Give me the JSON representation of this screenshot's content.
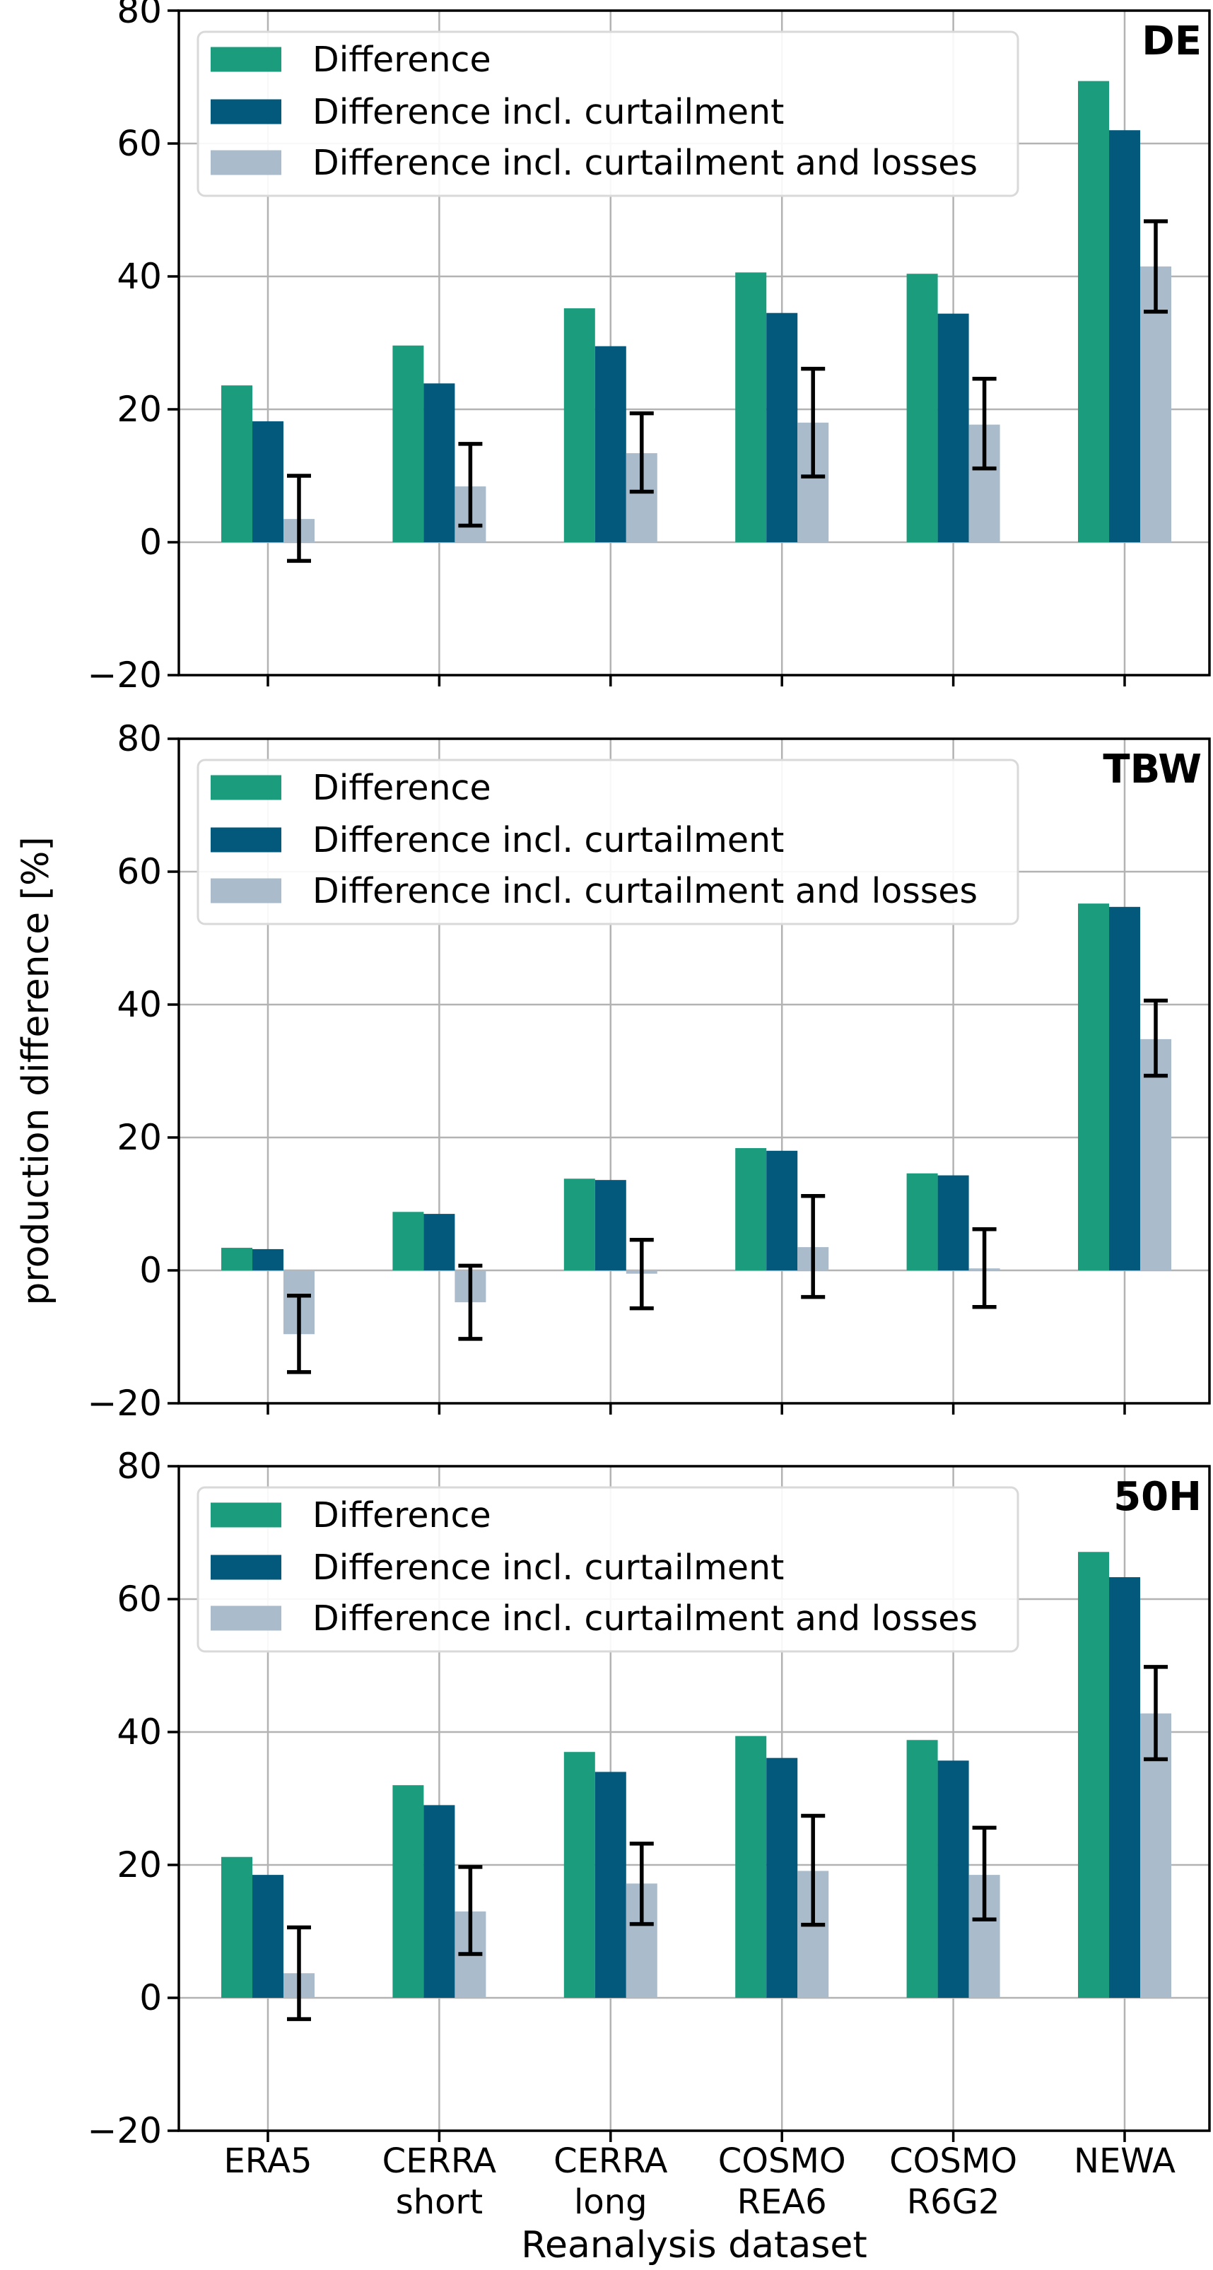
{
  "figure": {
    "ylabel": "production difference [%]",
    "xlabel": "Reanalysis dataset",
    "y_tick_labels": [
      "80",
      "60",
      "40",
      "20",
      "0",
      "−20"
    ],
    "colors": {
      "difference": "#1a9c7d",
      "difference_curtailment": "#03597c",
      "difference_curtailment_losses": "#aabccb",
      "grid": "#b3b3b3",
      "spine": "#000000",
      "error_bar": "#000000",
      "legend_border": "#d9d9d9",
      "background": "#ffffff"
    }
  },
  "legend": {
    "entries": [
      {
        "label": "Difference",
        "color_key": "difference"
      },
      {
        "label": "Difference incl. curtailment",
        "color_key": "difference_curtailment"
      },
      {
        "label": "Difference incl. curtailment and losses",
        "color_key": "difference_curtailment_losses"
      }
    ]
  },
  "x_categories": [
    [
      "ERA5"
    ],
    [
      "CERRA",
      "short"
    ],
    [
      "CERRA",
      "long"
    ],
    [
      "COSMO",
      "REA6"
    ],
    [
      "COSMO",
      "R6G2"
    ],
    [
      "NEWA"
    ]
  ],
  "chart_data": [
    {
      "type": "bar",
      "panel_label": "DE",
      "categories": [
        "ERA5",
        "CERRA short",
        "CERRA long",
        "COSMO REA6",
        "COSMO R6G2",
        "NEWA"
      ],
      "ylabel": "production difference [%]",
      "ylim": [
        -20,
        80
      ],
      "yticks": [
        80,
        60,
        40,
        20,
        0,
        -20
      ],
      "grid": true,
      "legend_position": "upper left",
      "series": [
        {
          "name": "Difference",
          "color_key": "difference",
          "values": [
            23.6,
            29.6,
            35.2,
            40.6,
            40.4,
            69.4
          ]
        },
        {
          "name": "Difference incl. curtailment",
          "color_key": "difference_curtailment",
          "values": [
            18.2,
            23.9,
            29.5,
            34.5,
            34.4,
            62.0
          ]
        },
        {
          "name": "Difference incl. curtailment and losses",
          "color_key": "difference_curtailment_losses",
          "values": [
            3.5,
            8.4,
            13.4,
            18.0,
            17.7,
            41.5
          ],
          "error_low": [
            -2.8,
            2.5,
            7.6,
            9.9,
            11.1,
            34.7
          ],
          "error_high": [
            10.0,
            14.8,
            19.4,
            26.1,
            24.6,
            48.3
          ]
        }
      ]
    },
    {
      "type": "bar",
      "panel_label": "TBW",
      "categories": [
        "ERA5",
        "CERRA short",
        "CERRA long",
        "COSMO REA6",
        "COSMO R6G2",
        "NEWA"
      ],
      "ylabel": "production difference [%]",
      "ylim": [
        -20,
        80
      ],
      "yticks": [
        80,
        60,
        40,
        20,
        0,
        -20
      ],
      "grid": true,
      "legend_position": "upper left",
      "series": [
        {
          "name": "Difference",
          "color_key": "difference",
          "values": [
            3.4,
            8.8,
            13.8,
            18.4,
            14.6,
            55.2
          ]
        },
        {
          "name": "Difference incl. curtailment",
          "color_key": "difference_curtailment",
          "values": [
            3.2,
            8.5,
            13.6,
            18.0,
            14.3,
            54.7
          ]
        },
        {
          "name": "Difference incl. curtailment and losses",
          "color_key": "difference_curtailment_losses",
          "values": [
            -9.6,
            -4.8,
            -0.5,
            3.5,
            0.3,
            34.8
          ],
          "error_low": [
            -15.3,
            -10.3,
            -5.7,
            -4.0,
            -5.5,
            29.3
          ],
          "error_high": [
            -3.8,
            0.7,
            4.6,
            11.2,
            6.2,
            40.6
          ]
        }
      ]
    },
    {
      "type": "bar",
      "panel_label": "50H",
      "categories": [
        "ERA5",
        "CERRA short",
        "CERRA long",
        "COSMO REA6",
        "COSMO R6G2",
        "NEWA"
      ],
      "ylabel": "production difference [%]",
      "xlabel": "Reanalysis dataset",
      "ylim": [
        -20,
        80
      ],
      "yticks": [
        80,
        60,
        40,
        20,
        0,
        -20
      ],
      "grid": true,
      "legend_position": "upper left",
      "series": [
        {
          "name": "Difference",
          "color_key": "difference",
          "values": [
            21.2,
            32.0,
            37.0,
            39.4,
            38.8,
            67.1
          ]
        },
        {
          "name": "Difference incl. curtailment",
          "color_key": "difference_curtailment",
          "values": [
            18.5,
            29.0,
            34.0,
            36.1,
            35.7,
            63.3
          ]
        },
        {
          "name": "Difference incl. curtailment and losses",
          "color_key": "difference_curtailment_losses",
          "values": [
            3.7,
            13.0,
            17.2,
            19.1,
            18.5,
            42.8
          ],
          "error_low": [
            -3.2,
            6.6,
            11.1,
            11.0,
            11.8,
            35.9
          ],
          "error_high": [
            10.6,
            19.7,
            23.2,
            27.4,
            25.6,
            49.8
          ]
        }
      ]
    }
  ]
}
